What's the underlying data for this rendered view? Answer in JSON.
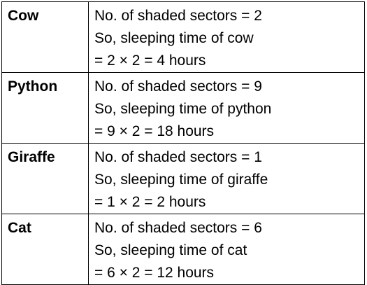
{
  "table": {
    "rows": [
      {
        "animal": "Cow",
        "lines": [
          "No. of shaded sectors = 2",
          "So, sleeping time of cow",
          "= 2 × 2 = 4 hours"
        ]
      },
      {
        "animal": "Python",
        "lines": [
          "No. of shaded sectors = 9",
          "So, sleeping time of python",
          "= 9 × 2 = 18 hours"
        ]
      },
      {
        "animal": "Giraffe",
        "lines": [
          "No. of shaded sectors = 1",
          "So, sleeping time of giraffe",
          "= 1 × 2 = 2 hours"
        ]
      },
      {
        "animal": "Cat",
        "lines": [
          "No. of shaded sectors = 6",
          "So, sleeping time of cat",
          "= 6 × 2 = 12 hours"
        ]
      }
    ]
  }
}
